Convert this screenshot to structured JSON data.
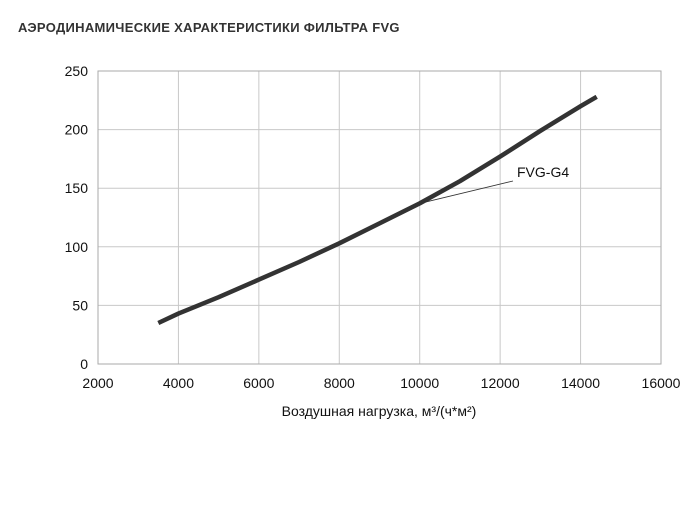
{
  "chart_data": {
    "type": "line",
    "title": "АЭРОДИНАМИЧЕСКИЕ ХАРАКТЕРИСТИКИ ФИЛЬТРА FVG",
    "x_label": "Воздушная нагрузка, м³/(ч*м²)",
    "x": [
      3500,
      4000,
      5000,
      6000,
      7000,
      8000,
      9000,
      10000,
      11000,
      12000,
      13000,
      14000,
      14400
    ],
    "series": [
      {
        "name": "FVG-G4",
        "color": "#333333",
        "values": [
          35,
          43,
          57,
          72,
          87,
          103,
          120,
          137,
          156,
          177,
          199,
          220,
          228
        ]
      }
    ],
    "xlim": [
      2000,
      16000
    ],
    "xticks": [
      2000,
      4000,
      6000,
      8000,
      10000,
      12000,
      14000,
      16000
    ],
    "ylim": [
      0,
      250
    ],
    "yticks": [
      0,
      50,
      100,
      150,
      200,
      250
    ],
    "grid": true
  }
}
